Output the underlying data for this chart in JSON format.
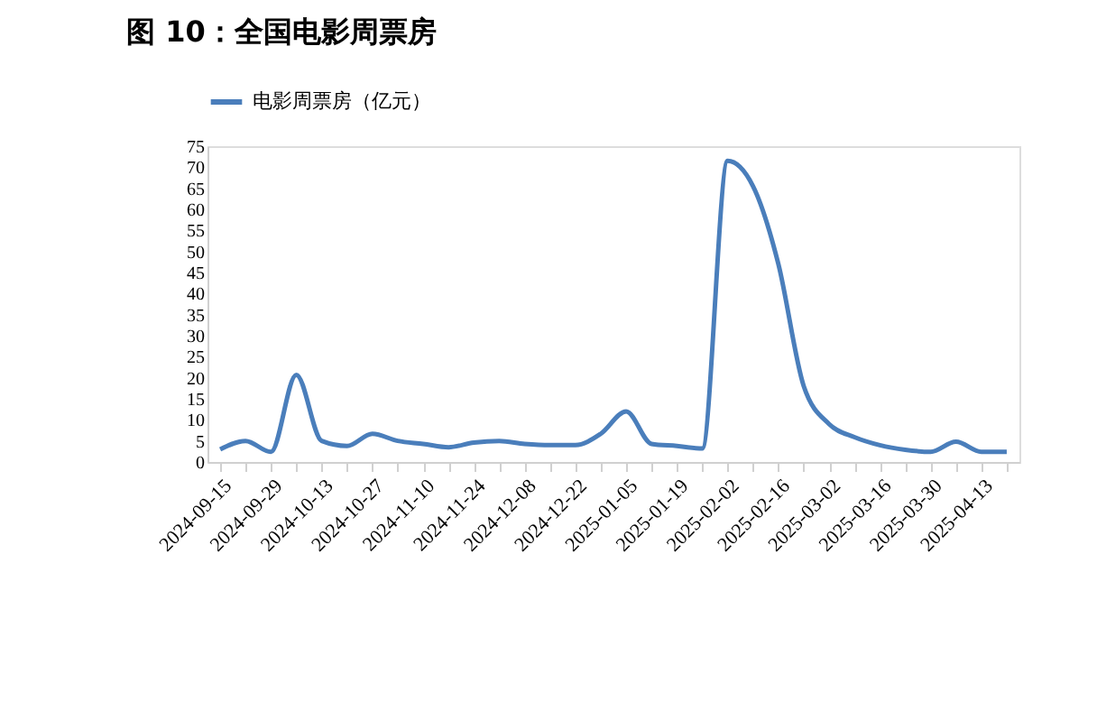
{
  "chart_data": {
    "type": "line",
    "title": "图 10：全国电影周票房",
    "categories": [
      "2024-09-15",
      null,
      "2024-09-29",
      null,
      "2024-10-13",
      null,
      "2024-10-27",
      null,
      "2024-11-10",
      null,
      "2024-11-24",
      null,
      "2024-12-08",
      null,
      "2024-12-22",
      null,
      "2025-01-05",
      null,
      "2025-01-19",
      null,
      "2025-02-02",
      null,
      "2025-02-16",
      null,
      "2025-03-02",
      null,
      "2025-03-16",
      null,
      "2025-03-30",
      null,
      "2025-04-13",
      null
    ],
    "series": [
      {
        "name": "电影周票房（亿元）",
        "color": "#4a7ebb",
        "values": [
          3,
          5,
          2.4,
          20.7,
          5,
          3.8,
          6.7,
          5,
          4.3,
          3.5,
          4.6,
          5,
          4.3,
          4,
          4,
          6.7,
          12,
          4.3,
          3.8,
          3.2,
          71.5,
          65.5,
          47,
          18,
          9,
          5.9,
          4,
          2.9,
          2.4,
          4.8,
          2.4,
          2.4
        ]
      }
    ],
    "ylim": [
      0,
      75
    ],
    "yticks": [
      0,
      5,
      10,
      15,
      20,
      25,
      30,
      35,
      40,
      45,
      50,
      55,
      60,
      65,
      70,
      75
    ],
    "grid": false,
    "legend": "top",
    "marker": "none",
    "line_style": "solid"
  }
}
